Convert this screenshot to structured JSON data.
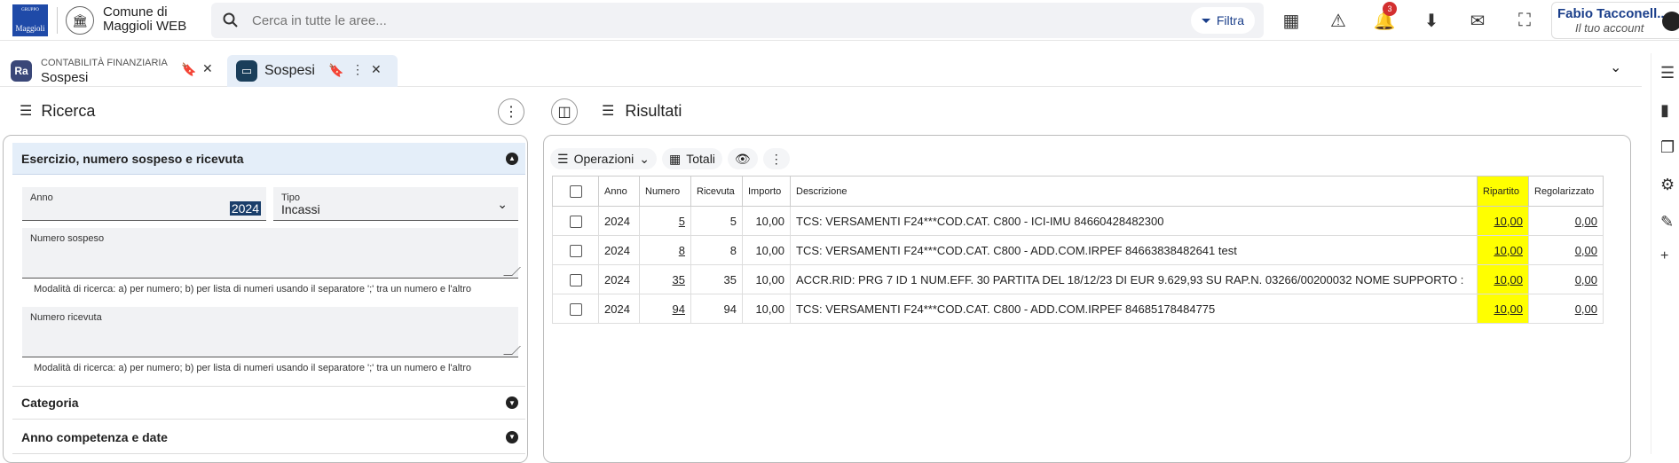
{
  "header": {
    "logo_top": "GRUPPO",
    "logo_text": "Maggioli",
    "ente_line1": "Comune di",
    "ente_line2": "Maggioli WEB",
    "search_placeholder": "Cerca in tutte le aree...",
    "filter_label": "Filtra",
    "notif_count": "3",
    "user_name": "Fabio Tacconell...",
    "user_sub": "Il tuo account"
  },
  "tabs": [
    {
      "small": "CONTABILITÀ FINANZIARIA",
      "label": "Sospesi",
      "badge": "Ra"
    },
    {
      "label": "Sospesi"
    }
  ],
  "left": {
    "title": "Ricerca",
    "sections": {
      "s1": "Esercizio, numero sospeso e ricevuta",
      "s2": "Categoria",
      "s3": "Anno competenza e date"
    },
    "anno_label": "Anno",
    "anno_value": "2024",
    "tipo_label": "Tipo",
    "tipo_value": "Incassi",
    "sospeso_label": "Numero sospeso",
    "ricevuta_label": "Numero ricevuta",
    "hint": "Modalità di ricerca: a) per numero; b) per lista di numeri usando il separatore ';' tra un numero e l'altro"
  },
  "right": {
    "title": "Risultati",
    "op_label": "Operazioni",
    "totali_label": "Totali",
    "columns": [
      "Anno",
      "Numero",
      "Ricevuta",
      "Importo",
      "Descrizione",
      "Ripartito",
      "Regolarizzato"
    ],
    "rows": [
      {
        "anno": "2024",
        "numero": "5",
        "ricevuta": "5",
        "importo": "10,00",
        "descrizione": "TCS: VERSAMENTI F24***COD.CAT. C800 - ICI-IMU 84660428482300",
        "ripartito": "10,00",
        "regolarizzato": "0,00"
      },
      {
        "anno": "2024",
        "numero": "8",
        "ricevuta": "8",
        "importo": "10,00",
        "descrizione": "TCS: VERSAMENTI F24***COD.CAT. C800 - ADD.COM.IRPEF 84663838482641 test",
        "ripartito": "10,00",
        "regolarizzato": "0,00"
      },
      {
        "anno": "2024",
        "numero": "35",
        "ricevuta": "35",
        "importo": "10,00",
        "descrizione": "ACCR.RID: PRG 7 ID 1 NUM.EFF. 30 PARTITA DEL 18/12/23 DI EUR 9.629,93 SU RAP.N. 03266/00200032 NOME SUPPORTO :",
        "ripartito": "10,00",
        "regolarizzato": "0,00"
      },
      {
        "anno": "2024",
        "numero": "94",
        "ricevuta": "94",
        "importo": "10,00",
        "descrizione": "TCS: VERSAMENTI F24***COD.CAT. C800 - ADD.COM.IRPEF 84685178484775",
        "ripartito": "10,00",
        "regolarizzato": "0,00"
      }
    ]
  },
  "colors": {
    "accent": "#1a3e8a",
    "highlight": "#ffff00",
    "open_section": "#e4eef9"
  }
}
